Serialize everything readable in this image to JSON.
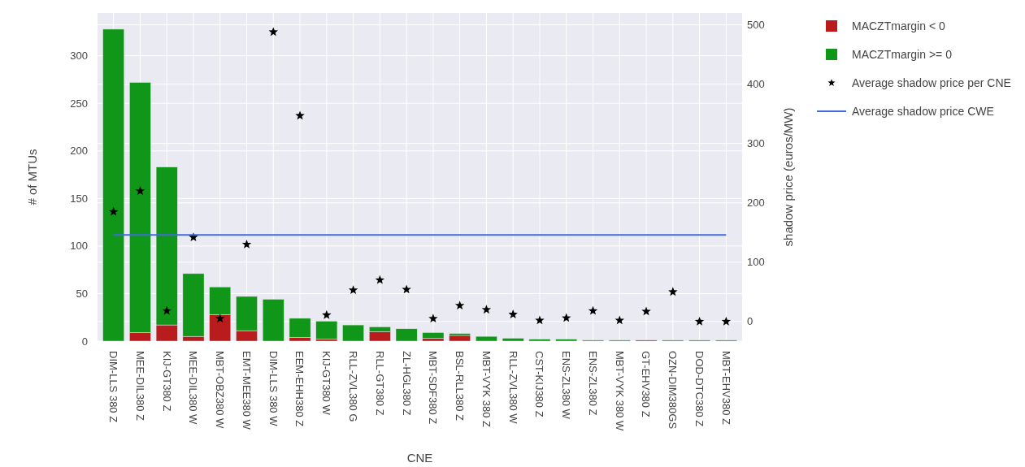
{
  "chart_data": {
    "type": "bar",
    "stacked": true,
    "xlabel": "CNE",
    "ylabel": "# of MTUs",
    "y2label": "shadow price (euros/MW)",
    "categories": [
      "DIM-LLS 380 Z",
      "MEE-DIL380 Z",
      "KIJ-GT380 Z",
      "MEE-DIL380 W",
      "MBT-OBZ380 W",
      "EMT-MEE380 W",
      "DIM-LLS 380 W",
      "EEM-EHH380 Z",
      "KIJ-GT380 W",
      "RLL-ZVL380 G",
      "RLL-GT380 Z",
      "ZL-HGL380 Z",
      "MBT-SDF380 Z",
      "BSL-RLL380 Z",
      "MBT-VYK 380 Z",
      "RLL-ZVL380 W",
      "CST-KIJ380 Z",
      "ENS-ZL380 W",
      "ENS-ZL380 Z",
      "MBT-VYK 380 W",
      "GT-EHV380 Z",
      "OZN-DIM380GS",
      "DOD-DTC380 Z",
      "MBT-EHV380 Z"
    ],
    "series": [
      {
        "name": "MACZTmargin < 0",
        "color": "#b81c1c",
        "values": [
          0,
          9,
          17,
          5,
          28,
          11,
          0,
          4,
          2,
          0,
          10,
          0,
          3,
          6,
          0,
          0,
          0,
          0,
          0,
          0,
          1,
          0,
          0,
          0
        ]
      },
      {
        "name": "MACZTmargin >= 0",
        "color": "#109618",
        "values": [
          328,
          263,
          166,
          66,
          29,
          36,
          44,
          20,
          19,
          17,
          5,
          13,
          6,
          2,
          5,
          3,
          2,
          2,
          1,
          1,
          0,
          1,
          1,
          1
        ]
      },
      {
        "name": "Average shadow price per CNE",
        "type": "scatter",
        "axis": "y2",
        "marker": "star",
        "color": "#000000",
        "values": [
          185,
          220,
          18,
          142,
          5,
          130,
          488,
          347,
          11,
          53,
          70,
          54,
          5,
          27,
          20,
          12,
          2,
          6,
          18,
          2,
          17,
          50,
          0,
          0
        ]
      },
      {
        "name": "Average shadow price CWE",
        "type": "line",
        "axis": "y2",
        "color": "#4169e1",
        "values": [
          146,
          146,
          146,
          146,
          146,
          146,
          146,
          146,
          146,
          146,
          146,
          146,
          146,
          146,
          146,
          146,
          146,
          146,
          146,
          146,
          146,
          146,
          146,
          146
        ]
      }
    ],
    "ylim": [
      0,
      345
    ],
    "yticks": [
      0,
      50,
      100,
      150,
      200,
      250,
      300
    ],
    "y2lim": [
      -33,
      520
    ],
    "y2ticks": [
      0,
      100,
      200,
      300,
      400,
      500
    ],
    "grid": true,
    "legend": "top right"
  }
}
